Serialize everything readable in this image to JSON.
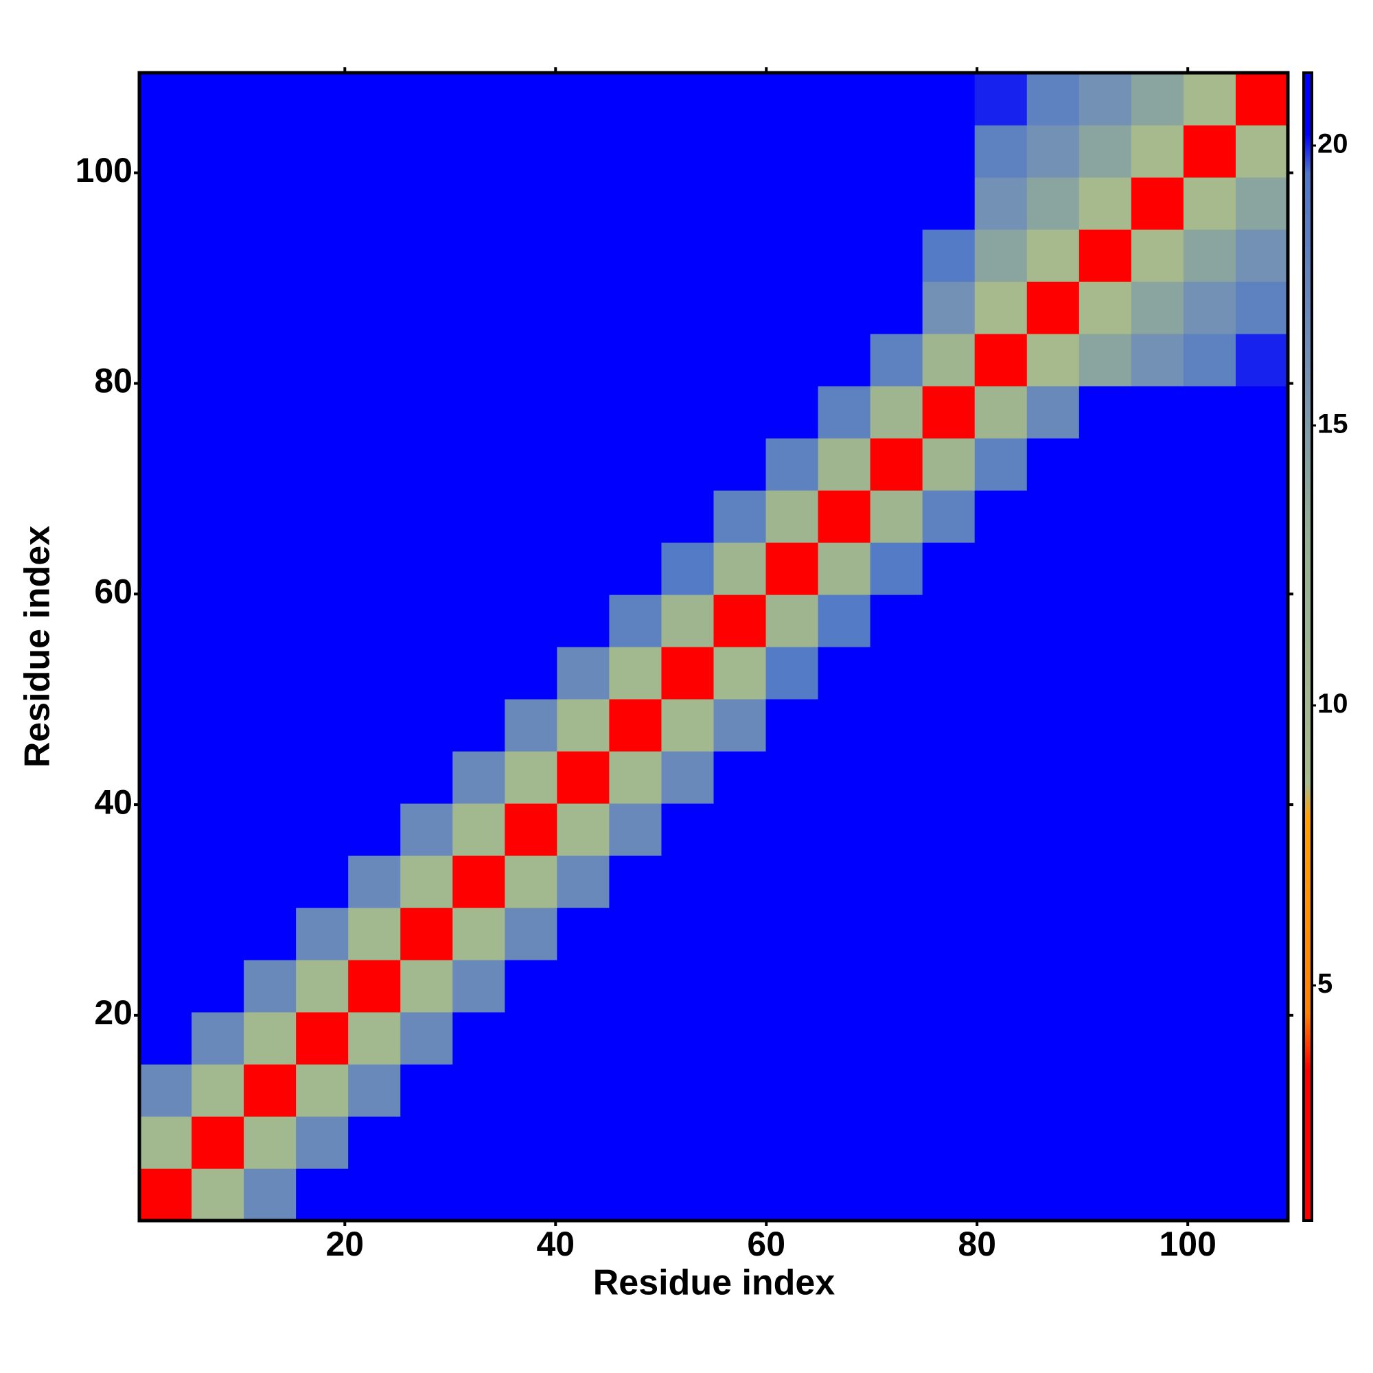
{
  "chart_data": {
    "type": "heatmap",
    "xlabel": "Residue index",
    "ylabel": "Residue index",
    "xlim": [
      0.5,
      109.5
    ],
    "ylim": [
      0.5,
      109.5
    ],
    "xticks": [
      20,
      40,
      60,
      80,
      100
    ],
    "yticks": [
      20,
      40,
      60,
      80,
      100
    ],
    "z": [
      [
        3,
        10,
        17,
        21,
        21,
        21,
        21,
        21,
        21,
        21,
        21,
        21,
        21,
        21,
        21,
        21,
        21,
        21,
        21,
        21,
        21,
        21
      ],
      [
        10,
        3,
        10,
        17,
        21,
        21,
        21,
        21,
        21,
        21,
        21,
        21,
        21,
        21,
        21,
        21,
        21,
        21,
        21,
        21,
        21,
        21
      ],
      [
        17,
        10,
        3,
        10,
        17,
        21,
        21,
        21,
        21,
        21,
        21,
        21,
        21,
        21,
        21,
        21,
        21,
        21,
        21,
        21,
        21,
        21
      ],
      [
        21,
        17,
        10,
        3,
        10,
        17,
        21,
        21,
        21,
        21,
        21,
        21,
        21,
        21,
        21,
        21,
        21,
        21,
        21,
        21,
        21,
        21
      ],
      [
        21,
        21,
        17,
        10,
        3,
        10,
        17,
        21,
        21,
        21,
        21,
        21,
        21,
        21,
        21,
        21,
        21,
        21,
        21,
        21,
        21,
        21
      ],
      [
        21,
        21,
        21,
        17,
        10,
        3,
        10,
        17,
        21,
        21,
        21,
        21,
        21,
        21,
        21,
        21,
        21,
        21,
        21,
        21,
        21,
        21
      ],
      [
        21,
        21,
        21,
        21,
        17,
        10,
        3,
        10,
        17,
        21,
        21,
        21,
        21,
        21,
        21,
        21,
        21,
        21,
        21,
        21,
        21,
        21
      ],
      [
        21,
        21,
        21,
        21,
        21,
        17,
        10,
        3,
        10,
        17,
        21,
        21,
        21,
        21,
        21,
        21,
        21,
        21,
        21,
        21,
        21,
        21
      ],
      [
        21,
        21,
        21,
        21,
        21,
        21,
        17,
        10,
        3,
        10,
        17,
        21,
        21,
        21,
        21,
        21,
        21,
        21,
        21,
        21,
        21,
        21
      ],
      [
        21,
        21,
        21,
        21,
        21,
        21,
        21,
        17,
        10,
        3,
        10,
        17,
        21,
        21,
        21,
        21,
        21,
        21,
        21,
        21,
        21,
        21
      ],
      [
        21,
        21,
        21,
        21,
        21,
        21,
        21,
        21,
        17,
        10,
        3,
        10,
        19,
        21,
        21,
        21,
        21,
        21,
        21,
        21,
        21,
        21
      ],
      [
        21,
        21,
        21,
        21,
        21,
        21,
        21,
        21,
        21,
        18,
        11,
        3,
        11,
        19,
        21,
        21,
        21,
        21,
        21,
        21,
        21,
        21
      ],
      [
        21,
        21,
        21,
        21,
        21,
        21,
        21,
        21,
        21,
        21,
        19,
        11,
        3,
        11,
        19,
        21,
        21,
        21,
        21,
        21,
        21,
        21
      ],
      [
        21,
        21,
        21,
        21,
        21,
        21,
        21,
        21,
        21,
        21,
        21,
        18,
        11,
        3,
        11,
        18,
        21,
        21,
        21,
        21,
        21,
        21
      ],
      [
        21,
        21,
        21,
        21,
        21,
        21,
        21,
        21,
        21,
        21,
        21,
        21,
        18,
        11,
        3,
        11,
        18,
        21,
        21,
        21,
        21,
        21
      ],
      [
        21,
        21,
        21,
        21,
        21,
        21,
        21,
        21,
        21,
        21,
        21,
        21,
        21,
        18,
        11,
        3,
        11,
        17,
        21,
        21,
        21,
        21
      ],
      [
        21,
        21,
        21,
        21,
        21,
        21,
        21,
        21,
        21,
        21,
        21,
        21,
        21,
        21,
        18,
        11,
        3,
        9,
        14,
        16,
        18,
        20
      ],
      [
        21,
        21,
        21,
        21,
        21,
        21,
        21,
        21,
        21,
        21,
        21,
        21,
        21,
        21,
        21,
        16,
        9,
        3,
        9,
        14,
        16,
        18
      ],
      [
        21,
        21,
        21,
        21,
        21,
        21,
        21,
        21,
        21,
        21,
        21,
        21,
        21,
        21,
        21,
        19,
        14,
        9,
        3,
        9,
        14,
        16
      ],
      [
        21,
        21,
        21,
        21,
        21,
        21,
        21,
        21,
        21,
        21,
        21,
        21,
        21,
        21,
        21,
        21,
        16,
        14,
        9,
        3,
        9,
        14
      ],
      [
        21,
        21,
        21,
        21,
        21,
        21,
        21,
        21,
        21,
        21,
        21,
        21,
        21,
        21,
        21,
        21,
        18,
        16,
        14,
        9,
        3,
        9
      ],
      [
        21,
        21,
        21,
        21,
        21,
        21,
        21,
        21,
        21,
        21,
        21,
        21,
        21,
        21,
        21,
        21,
        20,
        18,
        16,
        14,
        9,
        3
      ]
    ],
    "colorbar": {
      "lim": [
        0.8,
        21.3
      ],
      "ticks": [
        5,
        10,
        15,
        20
      ],
      "colors": [
        [
          0.8,
          "#ff0000"
        ],
        [
          3.5,
          "#ff0000"
        ],
        [
          4.5,
          "#ff8000"
        ],
        [
          8,
          "#ffa000"
        ],
        [
          8.6,
          "#a8bb8c"
        ],
        [
          13,
          "#95b094"
        ],
        [
          16,
          "#7390b5"
        ],
        [
          19.5,
          "#4f78c8"
        ],
        [
          20.2,
          "#0000ff"
        ],
        [
          21.3,
          "#0000ff"
        ]
      ]
    }
  }
}
